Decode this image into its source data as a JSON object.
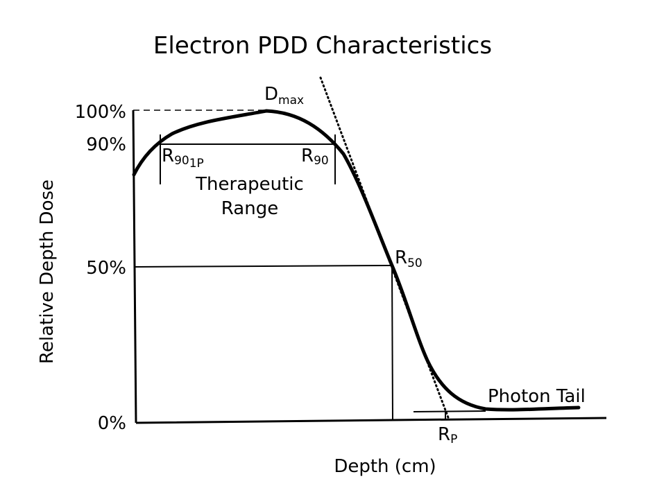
{
  "title": "Electron PDD Characteristics",
  "y_axis_label": "Relative Depth Dose",
  "x_axis_label": "Depth (cm)",
  "y_ticks": [
    "100%",
    "90%",
    "50%",
    "0%"
  ],
  "labels": {
    "dmax": {
      "base": "D",
      "sub": "max"
    },
    "r90_left": {
      "base": "R",
      "sub": "90",
      "subsub": "1P"
    },
    "r90_right": {
      "base": "R",
      "sub": "90"
    },
    "therapeutic_line1": "Therapeutic",
    "therapeutic_line2": "Range",
    "r50": {
      "base": "R",
      "sub": "50"
    },
    "rp": {
      "base": "R",
      "sub": "P"
    },
    "photon_tail": "Photon Tail"
  }
}
